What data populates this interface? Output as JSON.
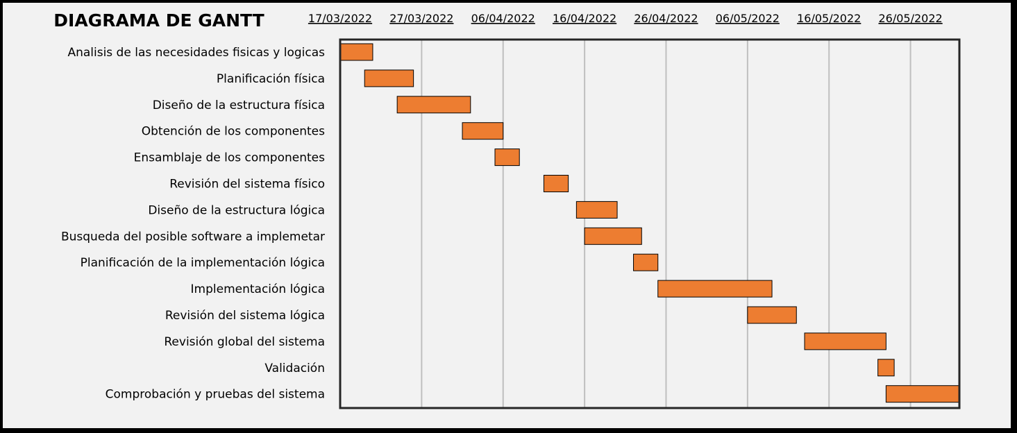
{
  "chart_data": {
    "type": "gantt",
    "title": "DIAGRAMA DE GANTT",
    "x_ticks": [
      "17/03/2022",
      "27/03/2022",
      "06/04/2022",
      "16/04/2022",
      "26/04/2022",
      "06/05/2022",
      "16/05/2022",
      "26/05/2022"
    ],
    "x_range": [
      "2022-03-17",
      "2022-06-01"
    ],
    "grid": true,
    "tasks": [
      {
        "name": "Analisis de las necesidades fisicas y logicas",
        "start": "2022-03-17",
        "end": "2022-03-21"
      },
      {
        "name": "Planificación física",
        "start": "2022-03-20",
        "end": "2022-03-26"
      },
      {
        "name": "Diseño de la estructura física",
        "start": "2022-03-24",
        "end": "2022-04-02"
      },
      {
        "name": "Obtención de los componentes",
        "start": "2022-04-01",
        "end": "2022-04-06"
      },
      {
        "name": "Ensamblaje de los componentes",
        "start": "2022-04-05",
        "end": "2022-04-08"
      },
      {
        "name": "Revisión del sistema físico",
        "start": "2022-04-11",
        "end": "2022-04-14"
      },
      {
        "name": "Diseño de la estructura lógica",
        "start": "2022-04-15",
        "end": "2022-04-20"
      },
      {
        "name": "Busqueda del posible software a implemetar",
        "start": "2022-04-16",
        "end": "2022-04-23"
      },
      {
        "name": "Planificación de la implementación lógica",
        "start": "2022-04-22",
        "end": "2022-04-25"
      },
      {
        "name": "Implementación lógica",
        "start": "2022-04-25",
        "end": "2022-05-09"
      },
      {
        "name": "Revisión del sistema lógica",
        "start": "2022-05-06",
        "end": "2022-05-12"
      },
      {
        "name": "Revisión global del sistema",
        "start": "2022-05-13",
        "end": "2022-05-23"
      },
      {
        "name": "Validación",
        "start": "2022-05-22",
        "end": "2022-05-24"
      },
      {
        "name": "Comprobación y pruebas del sistema",
        "start": "2022-05-23",
        "end": "2022-06-01"
      }
    ]
  },
  "colors": {
    "bar_fill": "#ed7d31",
    "bar_stroke": "#000000",
    "gridline": "#bfbfbf",
    "background": "#f2f2f2"
  }
}
